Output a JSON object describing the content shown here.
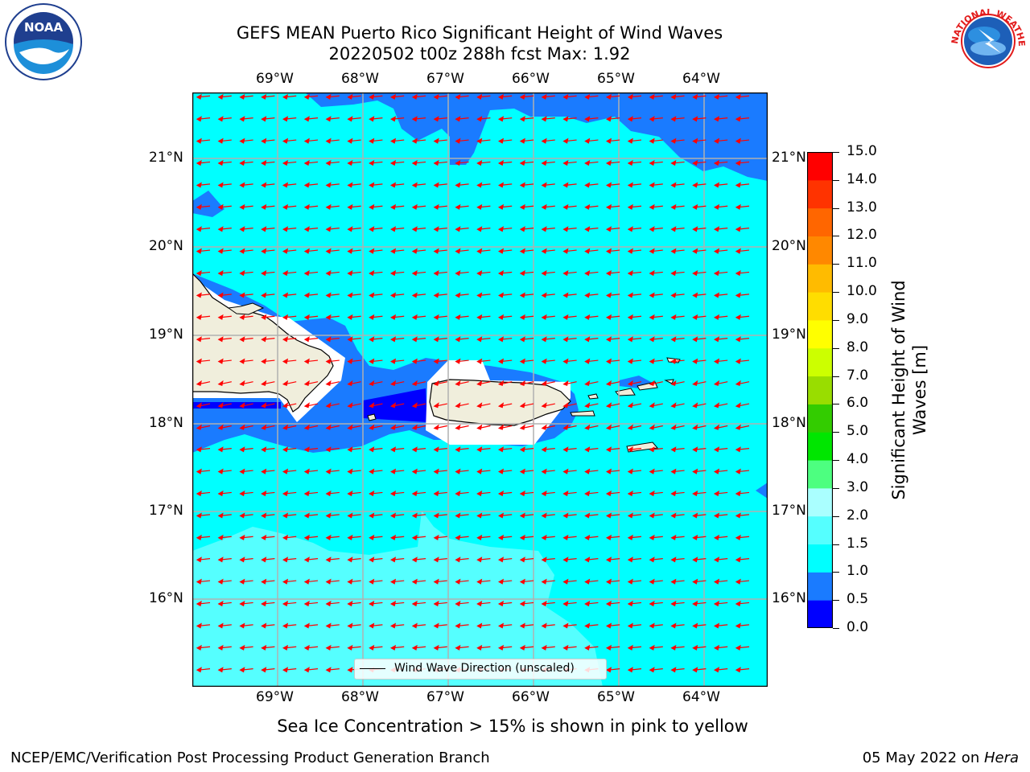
{
  "title": {
    "line1": "GEFS MEAN Puerto Rico Significant Height of Wind Waves",
    "line2": "20220502 t00z 288h fcst   Max: 1.92"
  },
  "logos": {
    "left": "noaa-logo",
    "right": "national-weather-service-logo",
    "left_text": "NOAA",
    "right_text": "NATIONAL WEATHER SERVICE"
  },
  "map": {
    "lon_labels": [
      "69°W",
      "68°W",
      "67°W",
      "66°W",
      "65°W",
      "64°W"
    ],
    "lat_labels": [
      "21°N",
      "20°N",
      "19°N",
      "18°N",
      "17°N",
      "16°N"
    ],
    "legend_label": "Wind Wave Direction (unscaled)",
    "colors": {
      "deep": "#0000ff",
      "mid": "#1a7bff",
      "cyan": "#00ffff",
      "light": "#55ffff",
      "land": "#f0eedc",
      "arrow": "#ff0000",
      "grid": "#b0b0b0"
    }
  },
  "colorbar": {
    "title": "Significant Height of Wind Waves [m]",
    "ticks": [
      "0.0",
      "0.5",
      "1.0",
      "1.5",
      "2.0",
      "3.0",
      "4.0",
      "5.0",
      "6.0",
      "7.0",
      "8.0",
      "9.0",
      "10.0",
      "11.0",
      "12.0",
      "13.0",
      "14.0",
      "15.0"
    ],
    "colors": [
      "#0000ff",
      "#1a7bff",
      "#00ffff",
      "#55ffff",
      "#aaffff",
      "#4dff80",
      "#00e600",
      "#33cc00",
      "#99dd00",
      "#ccff00",
      "#ffff00",
      "#ffdd00",
      "#ffbb00",
      "#ff8800",
      "#ff6600",
      "#ff3300",
      "#ff0000"
    ]
  },
  "caption": "Sea Ice Concentration > 15% is shown in pink to yellow",
  "footer": {
    "left": "NCEP/EMC/Verification Post Processing Product Generation Branch",
    "right_prefix": "05 May 2022 on ",
    "right_host": "Hera"
  }
}
